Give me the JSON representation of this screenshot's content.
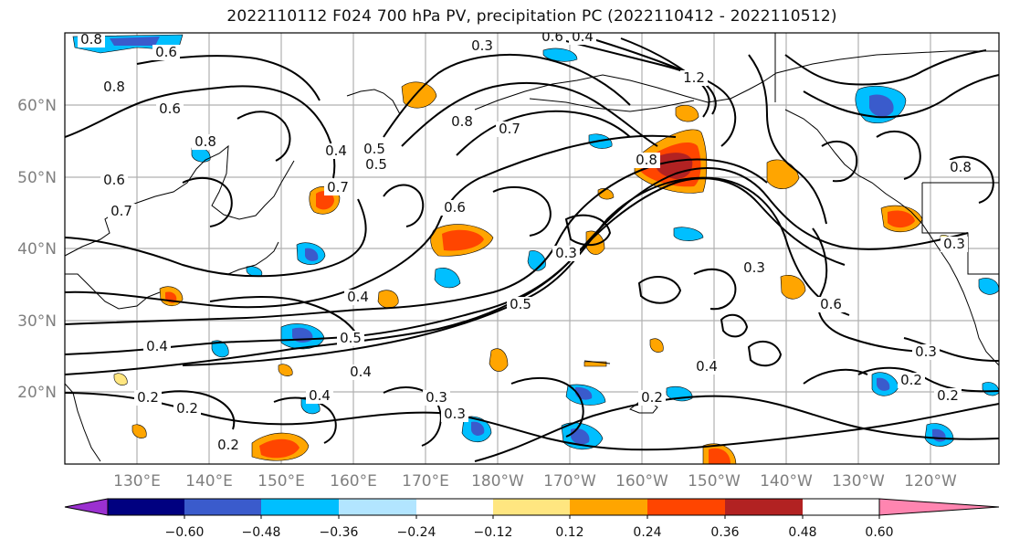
{
  "title": "2022110112 F024 700 hPa PV, precipitation PC (2022110412 - 2022110512)",
  "map": {
    "lat_labels": [
      "60°N",
      "50°N",
      "40°N",
      "30°N",
      "20°N"
    ],
    "lon_labels": [
      "130°E",
      "140°E",
      "150°E",
      "160°E",
      "170°E",
      "180°W",
      "170°W",
      "160°W",
      "150°W",
      "140°W",
      "130°W",
      "120°W"
    ],
    "contour_labels": [
      "0.8",
      "0.6",
      "0.8",
      "0.6",
      "0.8",
      "0.5",
      "0.7",
      "0.6",
      "0.5",
      "0.8",
      "0.4",
      "0.5",
      "0.6",
      "0.7",
      "0.4",
      "0.7",
      "0.3",
      "0.4",
      "0.5",
      "0.3",
      "0.4",
      "0.3",
      "0.6",
      "0.4",
      "0.3",
      "0.2",
      "0.2",
      "0.2",
      "0.3",
      "0.2",
      "0.2",
      "0.2",
      "1.2",
      "0.8",
      "0.4",
      "0.6",
      "0.4",
      "0.3",
      "0.8",
      "0.3"
    ]
  },
  "colorbar": {
    "ticks": [
      "−0.60",
      "−0.48",
      "−0.36",
      "−0.24",
      "−0.12",
      "0.12",
      "0.24",
      "0.36",
      "0.48",
      "0.60"
    ],
    "colors": [
      "#9b30d0",
      "#000080",
      "#3a5bcc",
      "#00bfff",
      "#b2e5ff",
      "#ffffff",
      "#ffe680",
      "#ffa500",
      "#ff4500",
      "#b22222",
      "#ff85b0"
    ]
  }
}
